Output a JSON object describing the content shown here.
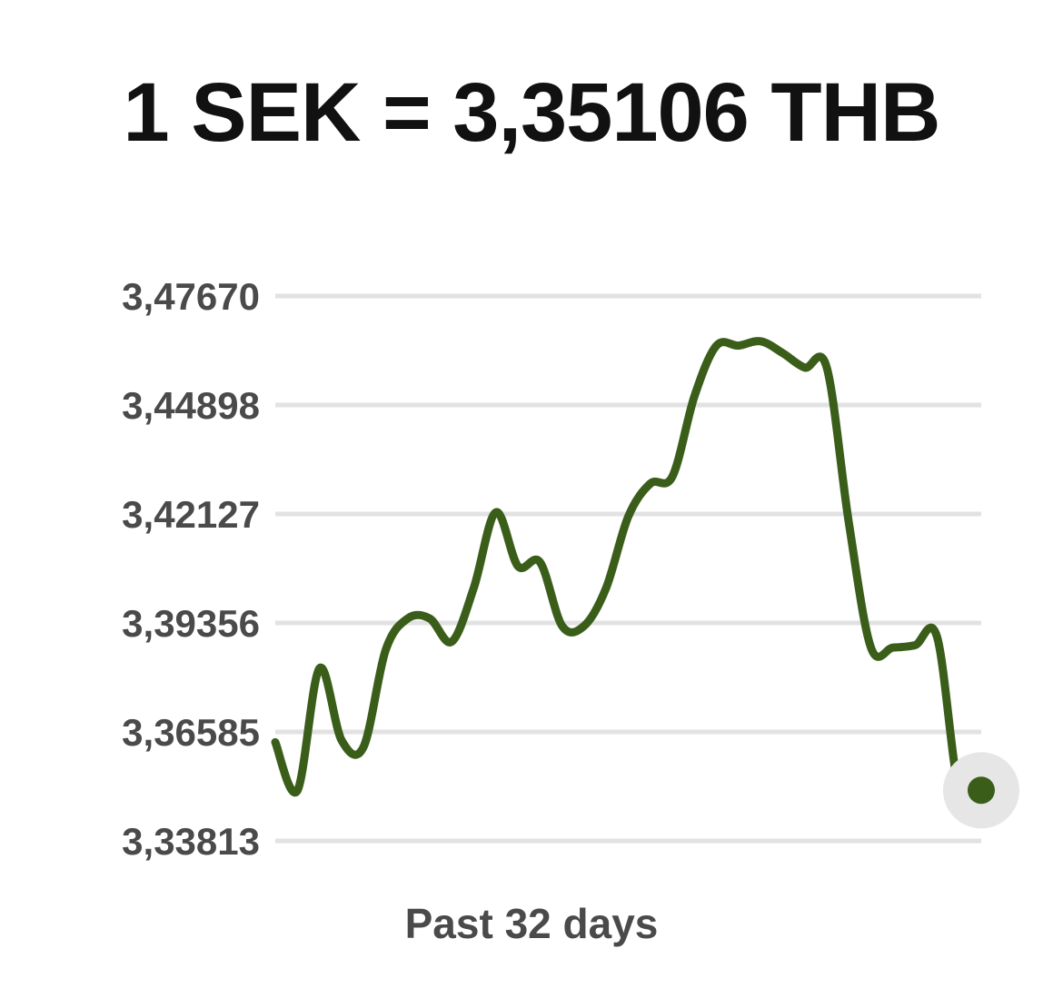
{
  "header": {
    "rate_text": "1 SEK = 3,35106 THB"
  },
  "footer": {
    "period_label": "Past 32 days"
  },
  "colors": {
    "line": "#3a5e1a",
    "grid": "#e2e2e2",
    "tick_text": "#4a4a4a",
    "marker_halo": "#e6e6e6"
  },
  "chart_data": {
    "type": "line",
    "title": "",
    "xlabel": "Past 32 days",
    "ylabel": "",
    "grid": true,
    "legend": "none",
    "y_ticks": [
      "3,33813",
      "3,36585",
      "3,39356",
      "3,42127",
      "3,44898",
      "3,47670"
    ],
    "y_tick_values": [
      3.33813,
      3.36585,
      3.39356,
      3.42127,
      3.44898,
      3.4767
    ],
    "ylim": [
      3.33813,
      3.4767
    ],
    "xlim": [
      0,
      32
    ],
    "x": [
      0,
      1,
      2,
      3,
      4,
      5,
      6,
      7,
      8,
      9,
      10,
      11,
      12,
      13,
      14,
      15,
      16,
      17,
      18,
      19,
      20,
      21,
      22,
      23,
      24,
      25,
      26,
      27,
      28,
      29,
      30,
      31,
      32
    ],
    "series": [
      {
        "values": [
          3.3632,
          3.3509,
          3.382,
          3.3638,
          3.362,
          3.3866,
          3.3947,
          3.3947,
          3.3888,
          3.4025,
          3.4217,
          3.408,
          3.409,
          3.3928,
          3.3928,
          3.4025,
          3.4206,
          3.429,
          3.4308,
          3.4512,
          3.4641,
          3.4641,
          3.4652,
          3.4622,
          3.4585,
          3.4585,
          3.419,
          3.3873,
          3.3873,
          3.3879,
          3.39,
          3.351,
          3.351
        ]
      }
    ]
  }
}
